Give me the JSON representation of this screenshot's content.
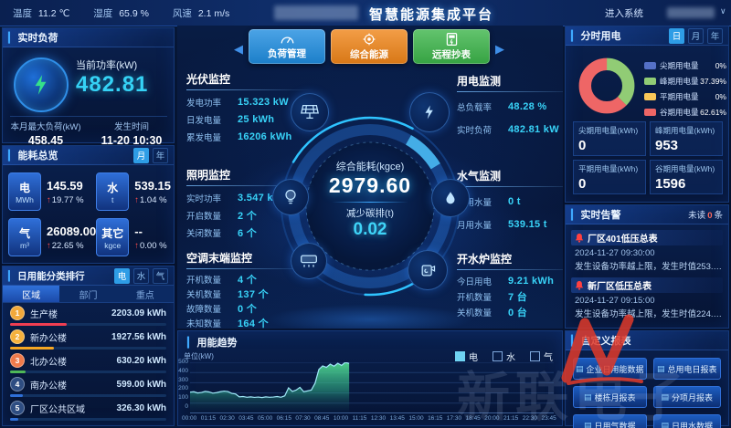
{
  "topbar": {
    "weather": [
      {
        "label": "温度",
        "value": "11.2 ℃"
      },
      {
        "label": "湿度",
        "value": "65.9 %"
      },
      {
        "label": "风速",
        "value": "2.1 m/s"
      }
    ],
    "title": "智慧能源集成平台",
    "enter_system": "进入系统"
  },
  "realtime_load": {
    "title": "实时负荷",
    "current_power_label": "当前功率(kW)",
    "current_power": "482.81",
    "month_max_label": "本月最大负荷(kW)",
    "month_max": "458.45",
    "occur_time_label": "发生时间",
    "occur_time": "11-20 10:30"
  },
  "energy_overview": {
    "title": "能耗总览",
    "toggle": [
      "月",
      "年"
    ],
    "items": [
      {
        "name": "电",
        "unit": "MWh",
        "value": "145.59",
        "delta": "19.77 %"
      },
      {
        "name": "水",
        "unit": "t",
        "value": "539.15",
        "delta": "1.04 %"
      },
      {
        "name": "气",
        "unit": "m³",
        "value": "26089.00",
        "delta": "22.65 %"
      },
      {
        "name": "其它",
        "unit": "kgce",
        "value": "--",
        "delta": "0.00 %"
      }
    ]
  },
  "daily_rank": {
    "title": "日用能分类排行",
    "tabs": [
      "电",
      "水",
      "气"
    ],
    "columns": [
      "区域",
      "部门",
      "重点"
    ],
    "rows": [
      {
        "rank": "1",
        "name": "生产楼",
        "value": "2203.09 kWh",
        "pct": 36,
        "color": "#f03e52",
        "medal": "#f2a93b"
      },
      {
        "rank": "2",
        "name": "新办公楼",
        "value": "1927.56 kWh",
        "pct": 28,
        "color": "#f5a623",
        "medal": "#f5b13d"
      },
      {
        "rank": "3",
        "name": "北办公楼",
        "value": "630.20 kWh",
        "pct": 10,
        "color": "#4fb858",
        "medal": "#ef7a4b"
      },
      {
        "rank": "4",
        "name": "南办公楼",
        "value": "599.00 kWh",
        "pct": 8,
        "color": "#2f6fd8",
        "medal": "#2e4d82"
      },
      {
        "rank": "5",
        "name": "厂区公共区域",
        "value": "326.30 kWh",
        "pct": 5,
        "color": "#2f6fd8",
        "medal": "#2e4d82"
      }
    ]
  },
  "nav": {
    "buttons": [
      {
        "label": "负荷管理",
        "color": "#1f8de0"
      },
      {
        "label": "综合能源",
        "color": "#f08519"
      },
      {
        "label": "远程抄表",
        "color": "#3cb54a"
      }
    ]
  },
  "center": {
    "total_energy_label": "综合能耗(kgce)",
    "total_energy": "2979.60",
    "carbon_label": "减少碳排(t)",
    "carbon": "0.02"
  },
  "pv": {
    "title": "光伏监控",
    "rows": [
      [
        "发电功率",
        "15.323 kW"
      ],
      [
        "日发电量",
        "25 kWh"
      ],
      [
        "累发电量",
        "16206 kWh"
      ]
    ]
  },
  "lighting": {
    "title": "照明监控",
    "rows": [
      [
        "实时功率",
        "3.547 kW"
      ],
      [
        "开启数量",
        "2 个"
      ],
      [
        "关闭数量",
        "6 个"
      ]
    ]
  },
  "hvac": {
    "title": "空调末端监控",
    "rows": [
      [
        "开机数量",
        "4 个"
      ],
      [
        "关机数量",
        "137 个"
      ],
      [
        "故障数量",
        "0 个"
      ],
      [
        "未知数量",
        "164 个"
      ]
    ]
  },
  "power_mon": {
    "title": "用电监测",
    "rows": [
      [
        "总负载率",
        "48.28 %"
      ],
      [
        "实时负荷",
        "482.81 kW"
      ]
    ]
  },
  "water_gas": {
    "title": "水气监测",
    "rows": [
      [
        "日用水量",
        "0 t"
      ],
      [
        "月用水量",
        "539.15 t"
      ]
    ]
  },
  "boiler": {
    "title": "开水炉监控",
    "rows": [
      [
        "今日用电",
        "9.21 kWh"
      ],
      [
        "开机数量",
        "7 台"
      ],
      [
        "关机数量",
        "0 台"
      ]
    ]
  },
  "tou": {
    "title": "分时用电",
    "tabs": [
      "日",
      "月",
      "年"
    ],
    "legend": [
      {
        "label": "尖期用电量",
        "pct": "0%",
        "color": "#5470c6"
      },
      {
        "label": "峰期用电量",
        "pct": "37.39%",
        "color": "#91cc75"
      },
      {
        "label": "平期用电量",
        "pct": "0%",
        "color": "#fac858"
      },
      {
        "label": "谷期用电量",
        "pct": "62.61%",
        "color": "#ee6666"
      }
    ],
    "stats": [
      {
        "label": "尖期用电量(kWh)",
        "value": "0"
      },
      {
        "label": "峰期用电量(kWh)",
        "value": "953"
      },
      {
        "label": "平期用电量(kWh)",
        "value": "0"
      },
      {
        "label": "谷期用电量(kWh)",
        "value": "1596"
      }
    ]
  },
  "alarms": {
    "title": "实时告警",
    "unread_label": "未读",
    "unread_count": "0",
    "unread_unit": "条",
    "items": [
      {
        "name": "厂区401低压总表",
        "time": "2024-11-27 09:30:00",
        "desc": "发生设备功率越上限，发生时值253.2kW，..."
      },
      {
        "name": "新厂区低压总表",
        "time": "2024-11-27 09:15:00",
        "desc": "发生设备功率越上限，发生时值224.94kW..."
      }
    ]
  },
  "reports": {
    "title": "自定义报表",
    "buttons": [
      "企业日用能数据",
      "总用电日报表",
      "楼栋月报表",
      "分项月报表",
      "日用气数据",
      "日用水数据"
    ]
  },
  "chart_data": [
    {
      "type": "area",
      "title": "用能趋势",
      "ylabel": "单位(kW)",
      "ylim": [
        0,
        500
      ],
      "yticks": [
        0,
        100,
        200,
        300,
        400,
        500
      ],
      "xticks": [
        "00:00",
        "01:15",
        "02:30",
        "03:45",
        "05:00",
        "06:15",
        "07:30",
        "08:45",
        "10:00",
        "11:15",
        "12:30",
        "13:45",
        "15:00",
        "16:15",
        "17:30",
        "18:45",
        "20:00",
        "21:15",
        "22:30",
        "23:45"
      ],
      "x_total_hours": 24,
      "sample_interval_hours": 0.25,
      "legend": [
        {
          "label": "电",
          "color": "#6fd3f2",
          "checked": true
        },
        {
          "label": "水",
          "color": "",
          "checked": false
        },
        {
          "label": "气",
          "color": "",
          "checked": false
        }
      ],
      "series": [
        {
          "name": "电",
          "unit": "kW",
          "values": [
            208,
            212,
            200,
            205,
            215,
            210,
            198,
            203,
            212,
            218,
            214,
            196,
            190,
            162,
            165,
            158,
            162,
            157,
            160,
            155,
            162,
            158,
            160,
            165,
            158,
            172,
            250,
            215,
            228,
            255,
            212,
            220,
            228,
            295,
            430,
            465,
            450,
            482,
            462,
            490,
            470,
            500,
            488
          ]
        }
      ]
    },
    {
      "type": "pie",
      "title": "分时用电",
      "labels": [
        "尖期用电量",
        "峰期用电量",
        "平期用电量",
        "谷期用电量"
      ],
      "values": [
        0,
        37.39,
        0,
        62.61
      ],
      "colors": [
        "#5470c6",
        "#91cc75",
        "#fac858",
        "#ee6666"
      ]
    }
  ]
}
